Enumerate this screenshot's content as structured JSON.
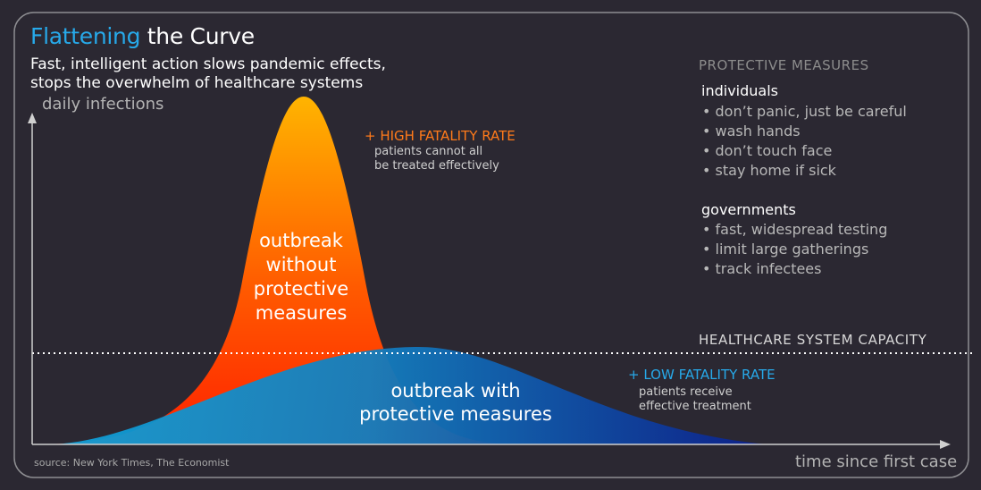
{
  "title": {
    "accent": "Flattening",
    "rest": " the Curve"
  },
  "subtitle": [
    "Fast, intelligent action slows pandemic effects,",
    "stops the overwhelm of healthcare systems"
  ],
  "axes": {
    "y_label": "daily infections",
    "x_label": "time since first case"
  },
  "curves": {
    "without": {
      "label": [
        "outbreak",
        "without",
        "protective",
        "measures"
      ],
      "color_top": "#ffb400",
      "color_bottom": "#ff2200"
    },
    "with": {
      "label": [
        "outbreak with",
        "protective measures"
      ],
      "color_left": "#0fa1d8",
      "color_right": "#0c1f8c"
    }
  },
  "annotations": {
    "high_head": "+ HIGH FATALITY RATE",
    "high_body": [
      "patients cannot all",
      "be treated effectively"
    ],
    "low_head": "+ LOW FATALITY RATE",
    "low_body": [
      "patients receive",
      "effective treatment"
    ]
  },
  "capacity_label": "HEALTHCARE SYSTEM CAPACITY",
  "protective_measures": {
    "title": "PROTECTIVE MEASURES",
    "groups": [
      {
        "name": "individuals",
        "items": [
          "• don’t panic, just be careful",
          "• wash hands",
          "• don’t touch face",
          "• stay home if sick"
        ]
      },
      {
        "name": "governments",
        "items": [
          "• fast, widespread testing",
          "• limit large gatherings",
          "• track infectees"
        ]
      }
    ]
  },
  "source": "source: New York Times, The Economist",
  "colors": {
    "background": "#2b2832",
    "accent_blue": "#27a9e9",
    "accent_orange": "#ff7a1a"
  }
}
